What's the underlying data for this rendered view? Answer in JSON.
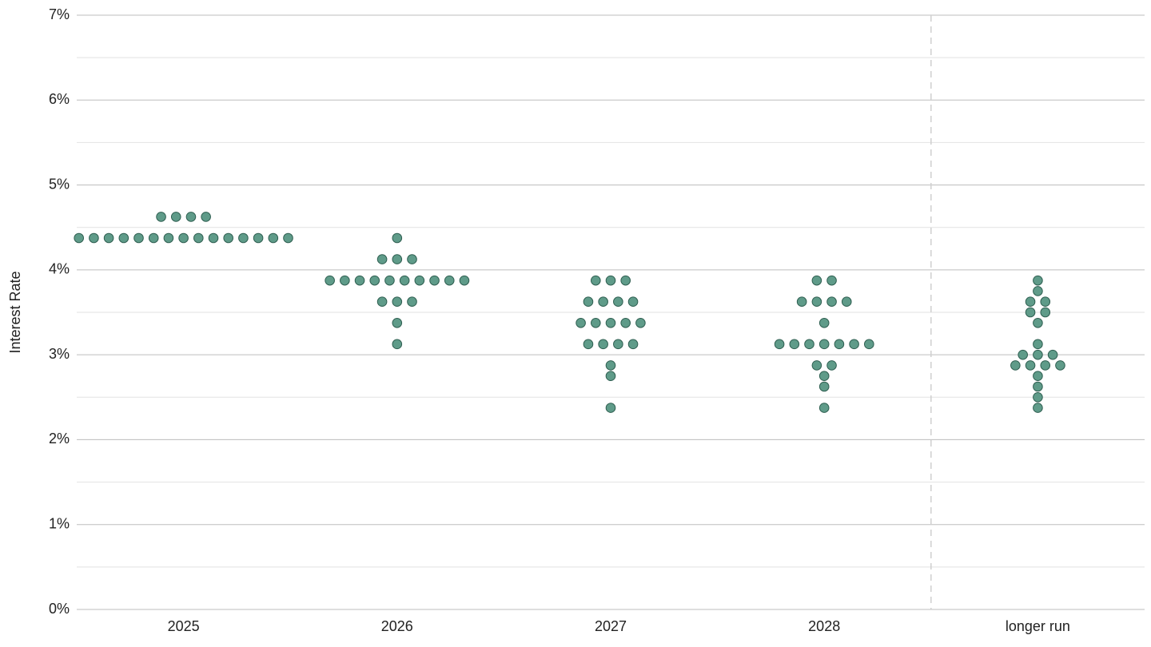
{
  "chart_data": {
    "type": "dot",
    "y_label": "Interest Rate",
    "categories": [
      "2025",
      "2026",
      "2027",
      "2028",
      "longer run"
    ],
    "values": [
      [
        4.625,
        4.625,
        4.625,
        4.625,
        4.375,
        4.375,
        4.375,
        4.375,
        4.375,
        4.375,
        4.375,
        4.375,
        4.375,
        4.375,
        4.375,
        4.375,
        4.375,
        4.375,
        4.375
      ],
      [
        4.375,
        4.125,
        4.125,
        4.125,
        3.875,
        3.875,
        3.875,
        3.875,
        3.875,
        3.875,
        3.875,
        3.875,
        3.875,
        3.875,
        3.625,
        3.625,
        3.625,
        3.375,
        3.125
      ],
      [
        3.875,
        3.875,
        3.875,
        3.625,
        3.625,
        3.625,
        3.625,
        3.375,
        3.375,
        3.375,
        3.375,
        3.375,
        3.125,
        3.125,
        3.125,
        3.125,
        2.875,
        2.75,
        2.375
      ],
      [
        3.875,
        3.875,
        3.625,
        3.625,
        3.625,
        3.625,
        3.375,
        3.125,
        3.125,
        3.125,
        3.125,
        3.125,
        3.125,
        3.125,
        2.875,
        2.875,
        2.75,
        2.625,
        2.375
      ],
      [
        3.875,
        3.75,
        3.625,
        3.625,
        3.5,
        3.5,
        3.375,
        3.125,
        3.0,
        3.0,
        3.0,
        2.875,
        2.875,
        2.875,
        2.875,
        2.75,
        2.625,
        2.5,
        2.375
      ]
    ],
    "color": "#5f9b89",
    "edge_color": "#2f5f51",
    "ylim": [
      0,
      7
    ],
    "yticks": [
      {
        "value": 0,
        "label": "0%"
      },
      {
        "value": 1,
        "label": "1%"
      },
      {
        "value": 2,
        "label": "2%"
      },
      {
        "value": 3,
        "label": "3%"
      },
      {
        "value": 4,
        "label": "4%"
      },
      {
        "value": 5,
        "label": "5%"
      },
      {
        "value": 6,
        "label": "6%"
      },
      {
        "value": 7,
        "label": "7%"
      }
    ],
    "minor_yticks": [
      0.5,
      1.5,
      2.5,
      3.5,
      4.5,
      5.5,
      6.5
    ],
    "grid": true
  }
}
